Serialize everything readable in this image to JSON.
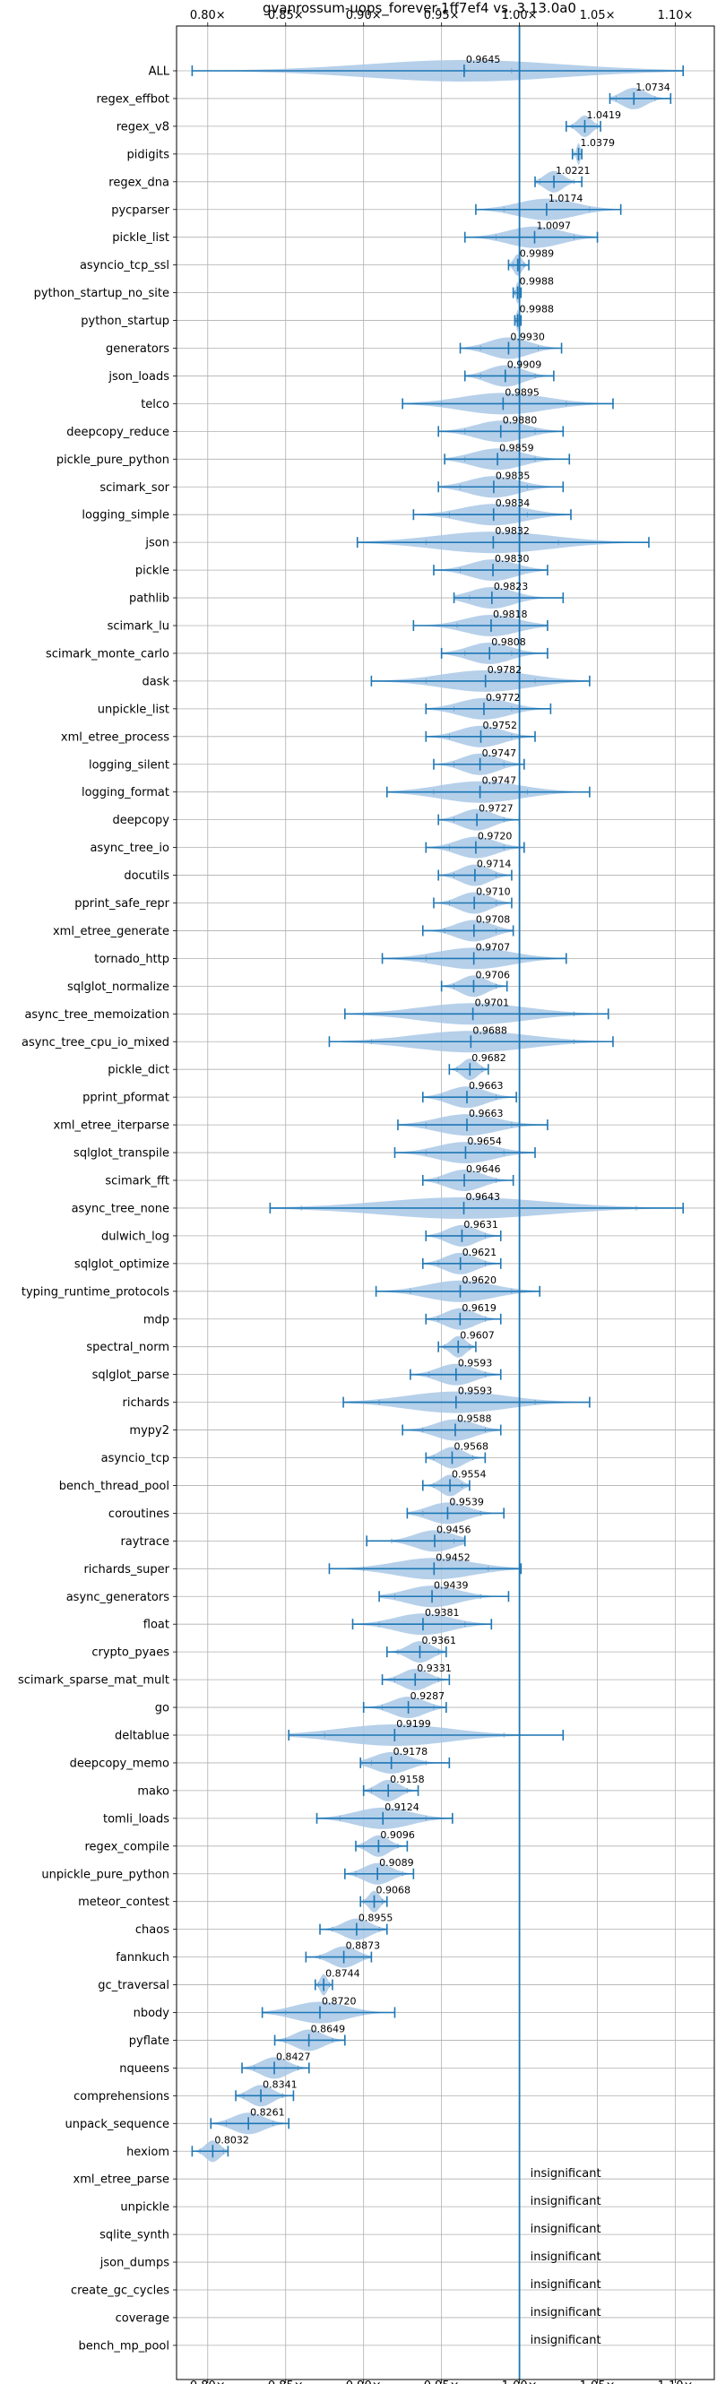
{
  "chart_data": {
    "type": "violin",
    "title": "gvanrossum-uops_forever-1ff7ef4 vs. 3.13.0a0",
    "xlabel": "",
    "ylabel": "",
    "xlim": [
      0.78,
      1.125
    ],
    "x_ticks": [
      0.8,
      0.85,
      0.9,
      0.95,
      1.0,
      1.05,
      1.1
    ],
    "x_tick_labels": [
      "0.80×",
      "0.85×",
      "0.90×",
      "0.95×",
      "1.00×",
      "1.05×",
      "1.10×"
    ],
    "reference_line": 1.0,
    "grid": true,
    "colors": {
      "violin": "#a9c8e6",
      "line": "#1f77b4"
    },
    "insignificant_label": "insignificant",
    "benchmarks": [
      {
        "name": "ALL",
        "median": 0.9645,
        "label": "0.9645",
        "min": 0.79,
        "max": 1.105,
        "wlo": 0.965,
        "whi": 0.995
      },
      {
        "name": "regex_effbot",
        "median": 1.0734,
        "label": "1.0734",
        "min": 1.058,
        "max": 1.097,
        "wlo": 1.062,
        "whi": 1.087
      },
      {
        "name": "regex_v8",
        "median": 1.0419,
        "label": "1.0419",
        "min": 1.03,
        "max": 1.052,
        "wlo": 1.034,
        "whi": 1.05
      },
      {
        "name": "pidigits",
        "median": 1.0379,
        "label": "1.0379",
        "min": 1.034,
        "max": 1.04,
        "wlo": 1.035,
        "whi": 1.04
      },
      {
        "name": "regex_dna",
        "median": 1.0221,
        "label": "1.0221",
        "min": 1.01,
        "max": 1.04,
        "wlo": 1.013,
        "whi": 1.035
      },
      {
        "name": "pycparser",
        "median": 1.0174,
        "label": "1.0174",
        "min": 0.972,
        "max": 1.065,
        "wlo": 0.99,
        "whi": 1.045
      },
      {
        "name": "pickle_list",
        "median": 1.0097,
        "label": "1.0097",
        "min": 0.965,
        "max": 1.05,
        "wlo": 0.985,
        "whi": 1.035
      },
      {
        "name": "asyncio_tcp_ssl",
        "median": 0.9989,
        "label": "0.9989",
        "min": 0.993,
        "max": 1.006,
        "wlo": 0.996,
        "whi": 1.003
      },
      {
        "name": "python_startup_no_site",
        "median": 0.9988,
        "label": "0.9988",
        "min": 0.996,
        "max": 1.001,
        "wlo": 0.997,
        "whi": 1.0
      },
      {
        "name": "python_startup",
        "median": 0.9988,
        "label": "0.9988",
        "min": 0.997,
        "max": 1.001,
        "wlo": 0.998,
        "whi": 1.0
      },
      {
        "name": "generators",
        "median": 0.993,
        "label": "0.9930",
        "min": 0.962,
        "max": 1.027,
        "wlo": 0.975,
        "whi": 1.012
      },
      {
        "name": "json_loads",
        "median": 0.9909,
        "label": "0.9909",
        "min": 0.965,
        "max": 1.022,
        "wlo": 0.975,
        "whi": 1.01
      },
      {
        "name": "telco",
        "median": 0.9895,
        "label": "0.9895",
        "min": 0.925,
        "max": 1.06,
        "wlo": 0.95,
        "whi": 1.03
      },
      {
        "name": "deepcopy_reduce",
        "median": 0.988,
        "label": "0.9880",
        "min": 0.948,
        "max": 1.028,
        "wlo": 0.965,
        "whi": 1.01
      },
      {
        "name": "pickle_pure_python",
        "median": 0.9859,
        "label": "0.9859",
        "min": 0.952,
        "max": 1.032,
        "wlo": 0.965,
        "whi": 1.01
      },
      {
        "name": "scimark_sor",
        "median": 0.9835,
        "label": "0.9835",
        "min": 0.948,
        "max": 1.028,
        "wlo": 0.962,
        "whi": 1.005
      },
      {
        "name": "logging_simple",
        "median": 0.9834,
        "label": "0.9834",
        "min": 0.932,
        "max": 1.033,
        "wlo": 0.955,
        "whi": 1.005
      },
      {
        "name": "json",
        "median": 0.9832,
        "label": "0.9832",
        "min": 0.896,
        "max": 1.083,
        "wlo": 0.94,
        "whi": 1.025
      },
      {
        "name": "pickle",
        "median": 0.983,
        "label": "0.9830",
        "min": 0.945,
        "max": 1.018,
        "wlo": 0.962,
        "whi": 1.0
      },
      {
        "name": "pathlib",
        "median": 0.9823,
        "label": "0.9823",
        "min": 0.958,
        "max": 1.028,
        "wlo": 0.968,
        "whi": 1.0
      },
      {
        "name": "scimark_lu",
        "median": 0.9818,
        "label": "0.9818",
        "min": 0.932,
        "max": 1.018,
        "wlo": 0.96,
        "whi": 1.0
      },
      {
        "name": "scimark_monte_carlo",
        "median": 0.9808,
        "label": "0.9808",
        "min": 0.95,
        "max": 1.018,
        "wlo": 0.965,
        "whi": 0.995
      },
      {
        "name": "dask",
        "median": 0.9782,
        "label": "0.9782",
        "min": 0.905,
        "max": 1.045,
        "wlo": 0.94,
        "whi": 1.01
      },
      {
        "name": "unpickle_list",
        "median": 0.9772,
        "label": "0.9772",
        "min": 0.94,
        "max": 1.02,
        "wlo": 0.958,
        "whi": 0.995
      },
      {
        "name": "xml_etree_process",
        "median": 0.9752,
        "label": "0.9752",
        "min": 0.94,
        "max": 1.01,
        "wlo": 0.955,
        "whi": 0.995
      },
      {
        "name": "logging_silent",
        "median": 0.9747,
        "label": "0.9747",
        "min": 0.945,
        "max": 1.003,
        "wlo": 0.958,
        "whi": 0.99
      },
      {
        "name": "logging_format",
        "median": 0.9747,
        "label": "0.9747",
        "min": 0.915,
        "max": 1.045,
        "wlo": 0.945,
        "whi": 1.005
      },
      {
        "name": "deepcopy",
        "median": 0.9727,
        "label": "0.9727",
        "min": 0.948,
        "max": 1.0,
        "wlo": 0.958,
        "whi": 0.99
      },
      {
        "name": "async_tree_io",
        "median": 0.972,
        "label": "0.9720",
        "min": 0.94,
        "max": 1.003,
        "wlo": 0.955,
        "whi": 0.99
      },
      {
        "name": "docutils",
        "median": 0.9714,
        "label": "0.9714",
        "min": 0.948,
        "max": 0.995,
        "wlo": 0.958,
        "whi": 0.985
      },
      {
        "name": "pprint_safe_repr",
        "median": 0.971,
        "label": "0.9710",
        "min": 0.945,
        "max": 0.995,
        "wlo": 0.955,
        "whi": 0.985
      },
      {
        "name": "xml_etree_generate",
        "median": 0.9708,
        "label": "0.9708",
        "min": 0.938,
        "max": 0.996,
        "wlo": 0.952,
        "whi": 0.985
      },
      {
        "name": "tornado_http",
        "median": 0.9707,
        "label": "0.9707",
        "min": 0.912,
        "max": 1.03,
        "wlo": 0.94,
        "whi": 1.0
      },
      {
        "name": "sqlglot_normalize",
        "median": 0.9706,
        "label": "0.9706",
        "min": 0.95,
        "max": 0.992,
        "wlo": 0.958,
        "whi": 0.985
      },
      {
        "name": "async_tree_memoization",
        "median": 0.9701,
        "label": "0.9701",
        "min": 0.888,
        "max": 1.057,
        "wlo": 0.9,
        "whi": 1.035
      },
      {
        "name": "async_tree_cpu_io_mixed",
        "median": 0.9688,
        "label": "0.9688",
        "min": 0.878,
        "max": 1.06,
        "wlo": 0.905,
        "whi": 1.035
      },
      {
        "name": "pickle_dict",
        "median": 0.9682,
        "label": "0.9682",
        "min": 0.955,
        "max": 0.98,
        "wlo": 0.96,
        "whi": 0.976
      },
      {
        "name": "pprint_pformat",
        "median": 0.9663,
        "label": "0.9663",
        "min": 0.938,
        "max": 0.998,
        "wlo": 0.95,
        "whi": 0.985
      },
      {
        "name": "xml_etree_iterparse",
        "median": 0.9663,
        "label": "0.9663",
        "min": 0.922,
        "max": 1.018,
        "wlo": 0.94,
        "whi": 0.995
      },
      {
        "name": "sqlglot_transpile",
        "median": 0.9654,
        "label": "0.9654",
        "min": 0.92,
        "max": 1.01,
        "wlo": 0.94,
        "whi": 0.99
      },
      {
        "name": "scimark_fft",
        "median": 0.9646,
        "label": "0.9646",
        "min": 0.938,
        "max": 0.996,
        "wlo": 0.948,
        "whi": 0.985
      },
      {
        "name": "async_tree_none",
        "median": 0.9643,
        "label": "0.9643",
        "min": 0.84,
        "max": 1.105,
        "wlo": 0.86,
        "whi": 1.075
      },
      {
        "name": "dulwich_log",
        "median": 0.9631,
        "label": "0.9631",
        "min": 0.94,
        "max": 0.988,
        "wlo": 0.95,
        "whi": 0.978
      },
      {
        "name": "sqlglot_optimize",
        "median": 0.9621,
        "label": "0.9621",
        "min": 0.938,
        "max": 0.988,
        "wlo": 0.948,
        "whi": 0.978
      },
      {
        "name": "typing_runtime_protocols",
        "median": 0.962,
        "label": "0.9620",
        "min": 0.908,
        "max": 1.013,
        "wlo": 0.93,
        "whi": 0.995
      },
      {
        "name": "mdp",
        "median": 0.9619,
        "label": "0.9619",
        "min": 0.94,
        "max": 0.988,
        "wlo": 0.948,
        "whi": 0.978
      },
      {
        "name": "spectral_norm",
        "median": 0.9607,
        "label": "0.9607",
        "min": 0.948,
        "max": 0.972,
        "wlo": 0.952,
        "whi": 0.968
      },
      {
        "name": "sqlglot_parse",
        "median": 0.9593,
        "label": "0.9593",
        "min": 0.93,
        "max": 0.988,
        "wlo": 0.942,
        "whi": 0.978
      },
      {
        "name": "richards",
        "median": 0.9593,
        "label": "0.9593",
        "min": 0.887,
        "max": 1.045,
        "wlo": 0.91,
        "whi": 1.01
      },
      {
        "name": "mypy2",
        "median": 0.9588,
        "label": "0.9588",
        "min": 0.925,
        "max": 0.988,
        "wlo": 0.938,
        "whi": 0.978
      },
      {
        "name": "asyncio_tcp",
        "median": 0.9568,
        "label": "0.9568",
        "min": 0.94,
        "max": 0.978,
        "wlo": 0.945,
        "whi": 0.97
      },
      {
        "name": "bench_thread_pool",
        "median": 0.9554,
        "label": "0.9554",
        "min": 0.938,
        "max": 0.968,
        "wlo": 0.945,
        "whi": 0.963
      },
      {
        "name": "coroutines",
        "median": 0.9539,
        "label": "0.9539",
        "min": 0.928,
        "max": 0.99,
        "wlo": 0.938,
        "whi": 0.975
      },
      {
        "name": "raytrace",
        "median": 0.9456,
        "label": "0.9456",
        "min": 0.902,
        "max": 0.965,
        "wlo": 0.918,
        "whi": 0.958
      },
      {
        "name": "richards_super",
        "median": 0.9452,
        "label": "0.9452",
        "min": 0.878,
        "max": 1.001,
        "wlo": 0.9,
        "whi": 0.98
      },
      {
        "name": "async_generators",
        "median": 0.9439,
        "label": "0.9439",
        "min": 0.91,
        "max": 0.993,
        "wlo": 0.92,
        "whi": 0.975
      },
      {
        "name": "float",
        "median": 0.9381,
        "label": "0.9381",
        "min": 0.893,
        "max": 0.982,
        "wlo": 0.91,
        "whi": 0.965
      },
      {
        "name": "crypto_pyaes",
        "median": 0.9361,
        "label": "0.9361",
        "min": 0.915,
        "max": 0.953,
        "wlo": 0.922,
        "whi": 0.948
      },
      {
        "name": "scimark_sparse_mat_mult",
        "median": 0.9331,
        "label": "0.9331",
        "min": 0.912,
        "max": 0.955,
        "wlo": 0.92,
        "whi": 0.948
      },
      {
        "name": "go",
        "median": 0.9287,
        "label": "0.9287",
        "min": 0.9,
        "max": 0.953,
        "wlo": 0.912,
        "whi": 0.945
      },
      {
        "name": "deltablue",
        "median": 0.9199,
        "label": "0.9199",
        "min": 0.852,
        "max": 1.028,
        "wlo": 0.875,
        "whi": 0.99
      },
      {
        "name": "deepcopy_memo",
        "median": 0.9178,
        "label": "0.9178",
        "min": 0.898,
        "max": 0.955,
        "wlo": 0.905,
        "whi": 0.94
      },
      {
        "name": "mako",
        "median": 0.9158,
        "label": "0.9158",
        "min": 0.9,
        "max": 0.935,
        "wlo": 0.905,
        "whi": 0.928
      },
      {
        "name": "tomli_loads",
        "median": 0.9124,
        "label": "0.9124",
        "min": 0.87,
        "max": 0.957,
        "wlo": 0.885,
        "whi": 0.94
      },
      {
        "name": "regex_compile",
        "median": 0.9096,
        "label": "0.9096",
        "min": 0.895,
        "max": 0.928,
        "wlo": 0.9,
        "whi": 0.922
      },
      {
        "name": "unpickle_pure_python",
        "median": 0.9089,
        "label": "0.9089",
        "min": 0.888,
        "max": 0.932,
        "wlo": 0.895,
        "whi": 0.925
      },
      {
        "name": "meteor_contest",
        "median": 0.9068,
        "label": "0.9068",
        "min": 0.898,
        "max": 0.915,
        "wlo": 0.9,
        "whi": 0.912
      },
      {
        "name": "chaos",
        "median": 0.8955,
        "label": "0.8955",
        "min": 0.872,
        "max": 0.915,
        "wlo": 0.88,
        "whi": 0.91
      },
      {
        "name": "fannkuch",
        "median": 0.8873,
        "label": "0.8873",
        "min": 0.863,
        "max": 0.905,
        "wlo": 0.872,
        "whi": 0.9
      },
      {
        "name": "gc_traversal",
        "median": 0.8744,
        "label": "0.8744",
        "min": 0.869,
        "max": 0.88,
        "wlo": 0.871,
        "whi": 0.878
      },
      {
        "name": "nbody",
        "median": 0.872,
        "label": "0.8720",
        "min": 0.835,
        "max": 0.92,
        "wlo": 0.85,
        "whi": 0.9
      },
      {
        "name": "pyflate",
        "median": 0.8649,
        "label": "0.8649",
        "min": 0.843,
        "max": 0.888,
        "wlo": 0.85,
        "whi": 0.88
      },
      {
        "name": "nqueens",
        "median": 0.8427,
        "label": "0.8427",
        "min": 0.822,
        "max": 0.865,
        "wlo": 0.83,
        "whi": 0.858
      },
      {
        "name": "comprehensions",
        "median": 0.8341,
        "label": "0.8341",
        "min": 0.818,
        "max": 0.855,
        "wlo": 0.823,
        "whi": 0.848
      },
      {
        "name": "unpack_sequence",
        "median": 0.8261,
        "label": "0.8261",
        "min": 0.802,
        "max": 0.852,
        "wlo": 0.812,
        "whi": 0.842
      },
      {
        "name": "hexiom",
        "median": 0.8032,
        "label": "0.8032",
        "min": 0.79,
        "max": 0.813,
        "wlo": 0.795,
        "whi": 0.81
      },
      {
        "name": "xml_etree_parse",
        "insignificant": true
      },
      {
        "name": "unpickle",
        "insignificant": true
      },
      {
        "name": "sqlite_synth",
        "insignificant": true
      },
      {
        "name": "json_dumps",
        "insignificant": true
      },
      {
        "name": "create_gc_cycles",
        "insignificant": true
      },
      {
        "name": "coverage",
        "insignificant": true
      },
      {
        "name": "bench_mp_pool",
        "insignificant": true
      }
    ]
  }
}
